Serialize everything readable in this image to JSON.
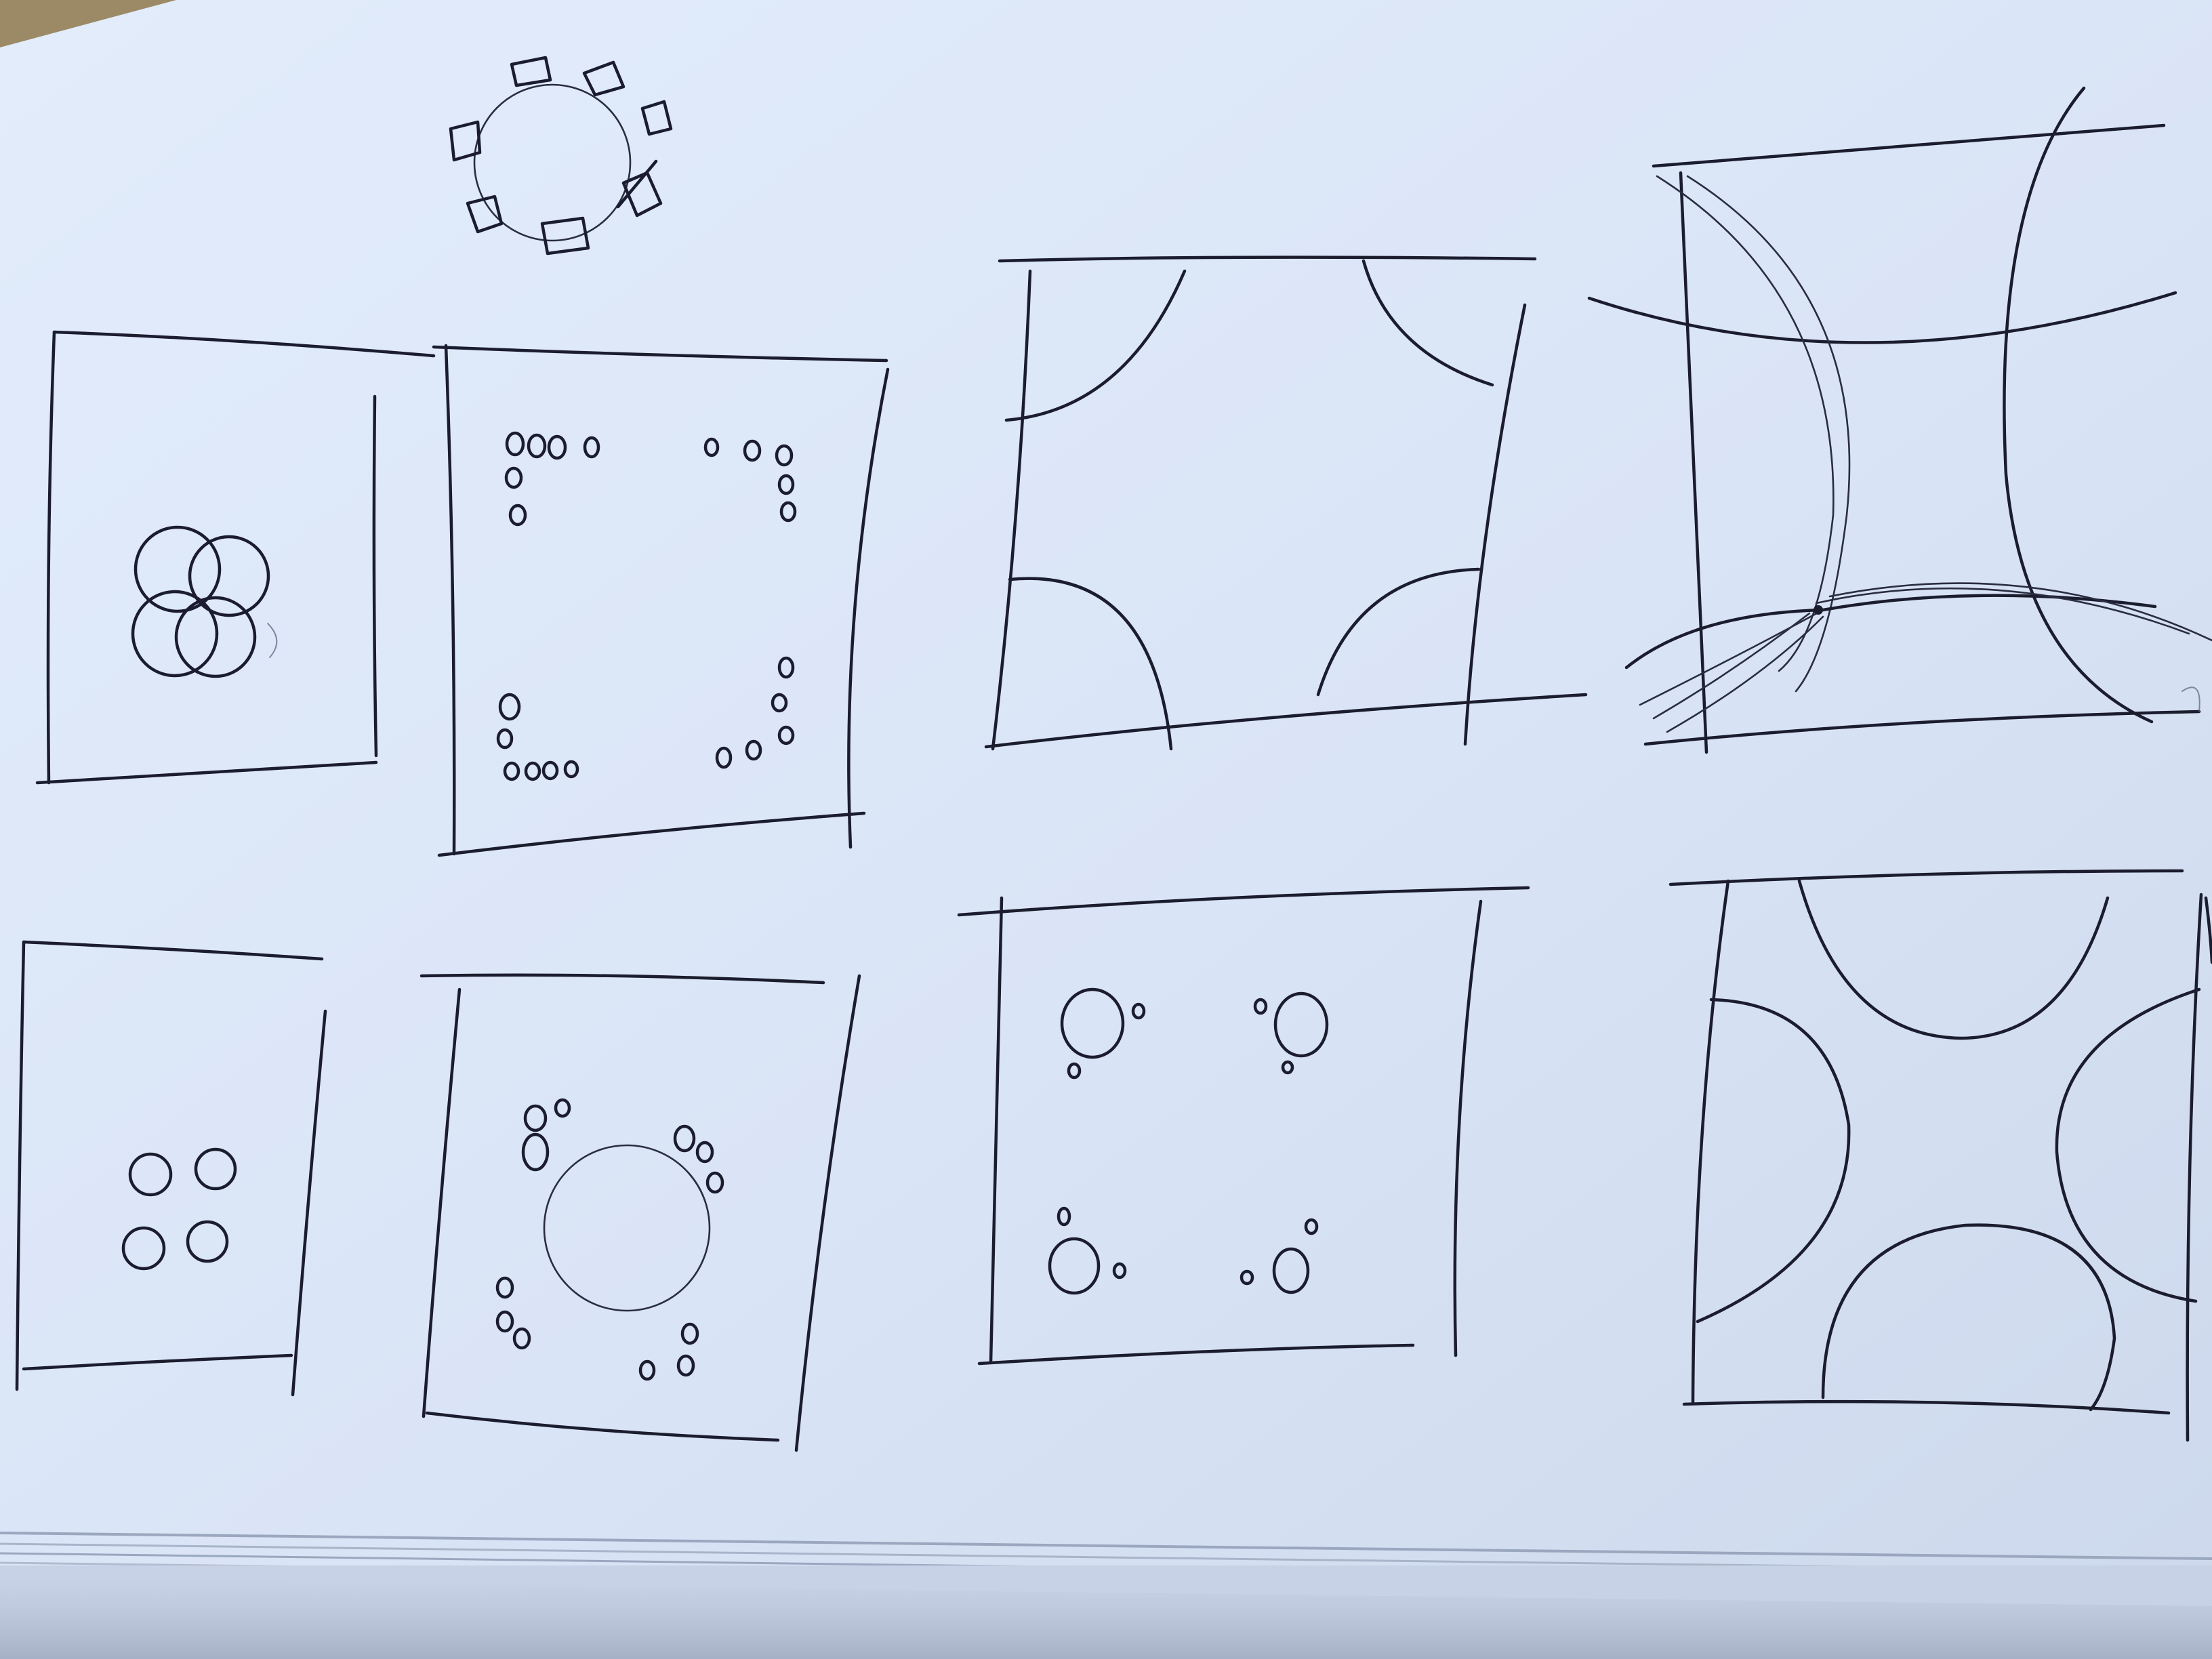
{
  "photo": {
    "subject": "",
    "colors": {
      "paper": "#dbe6f7",
      "paper_edge": "#c9d5ea",
      "ink": "#1b1d2e",
      "wood": "#9c8a66"
    }
  }
}
